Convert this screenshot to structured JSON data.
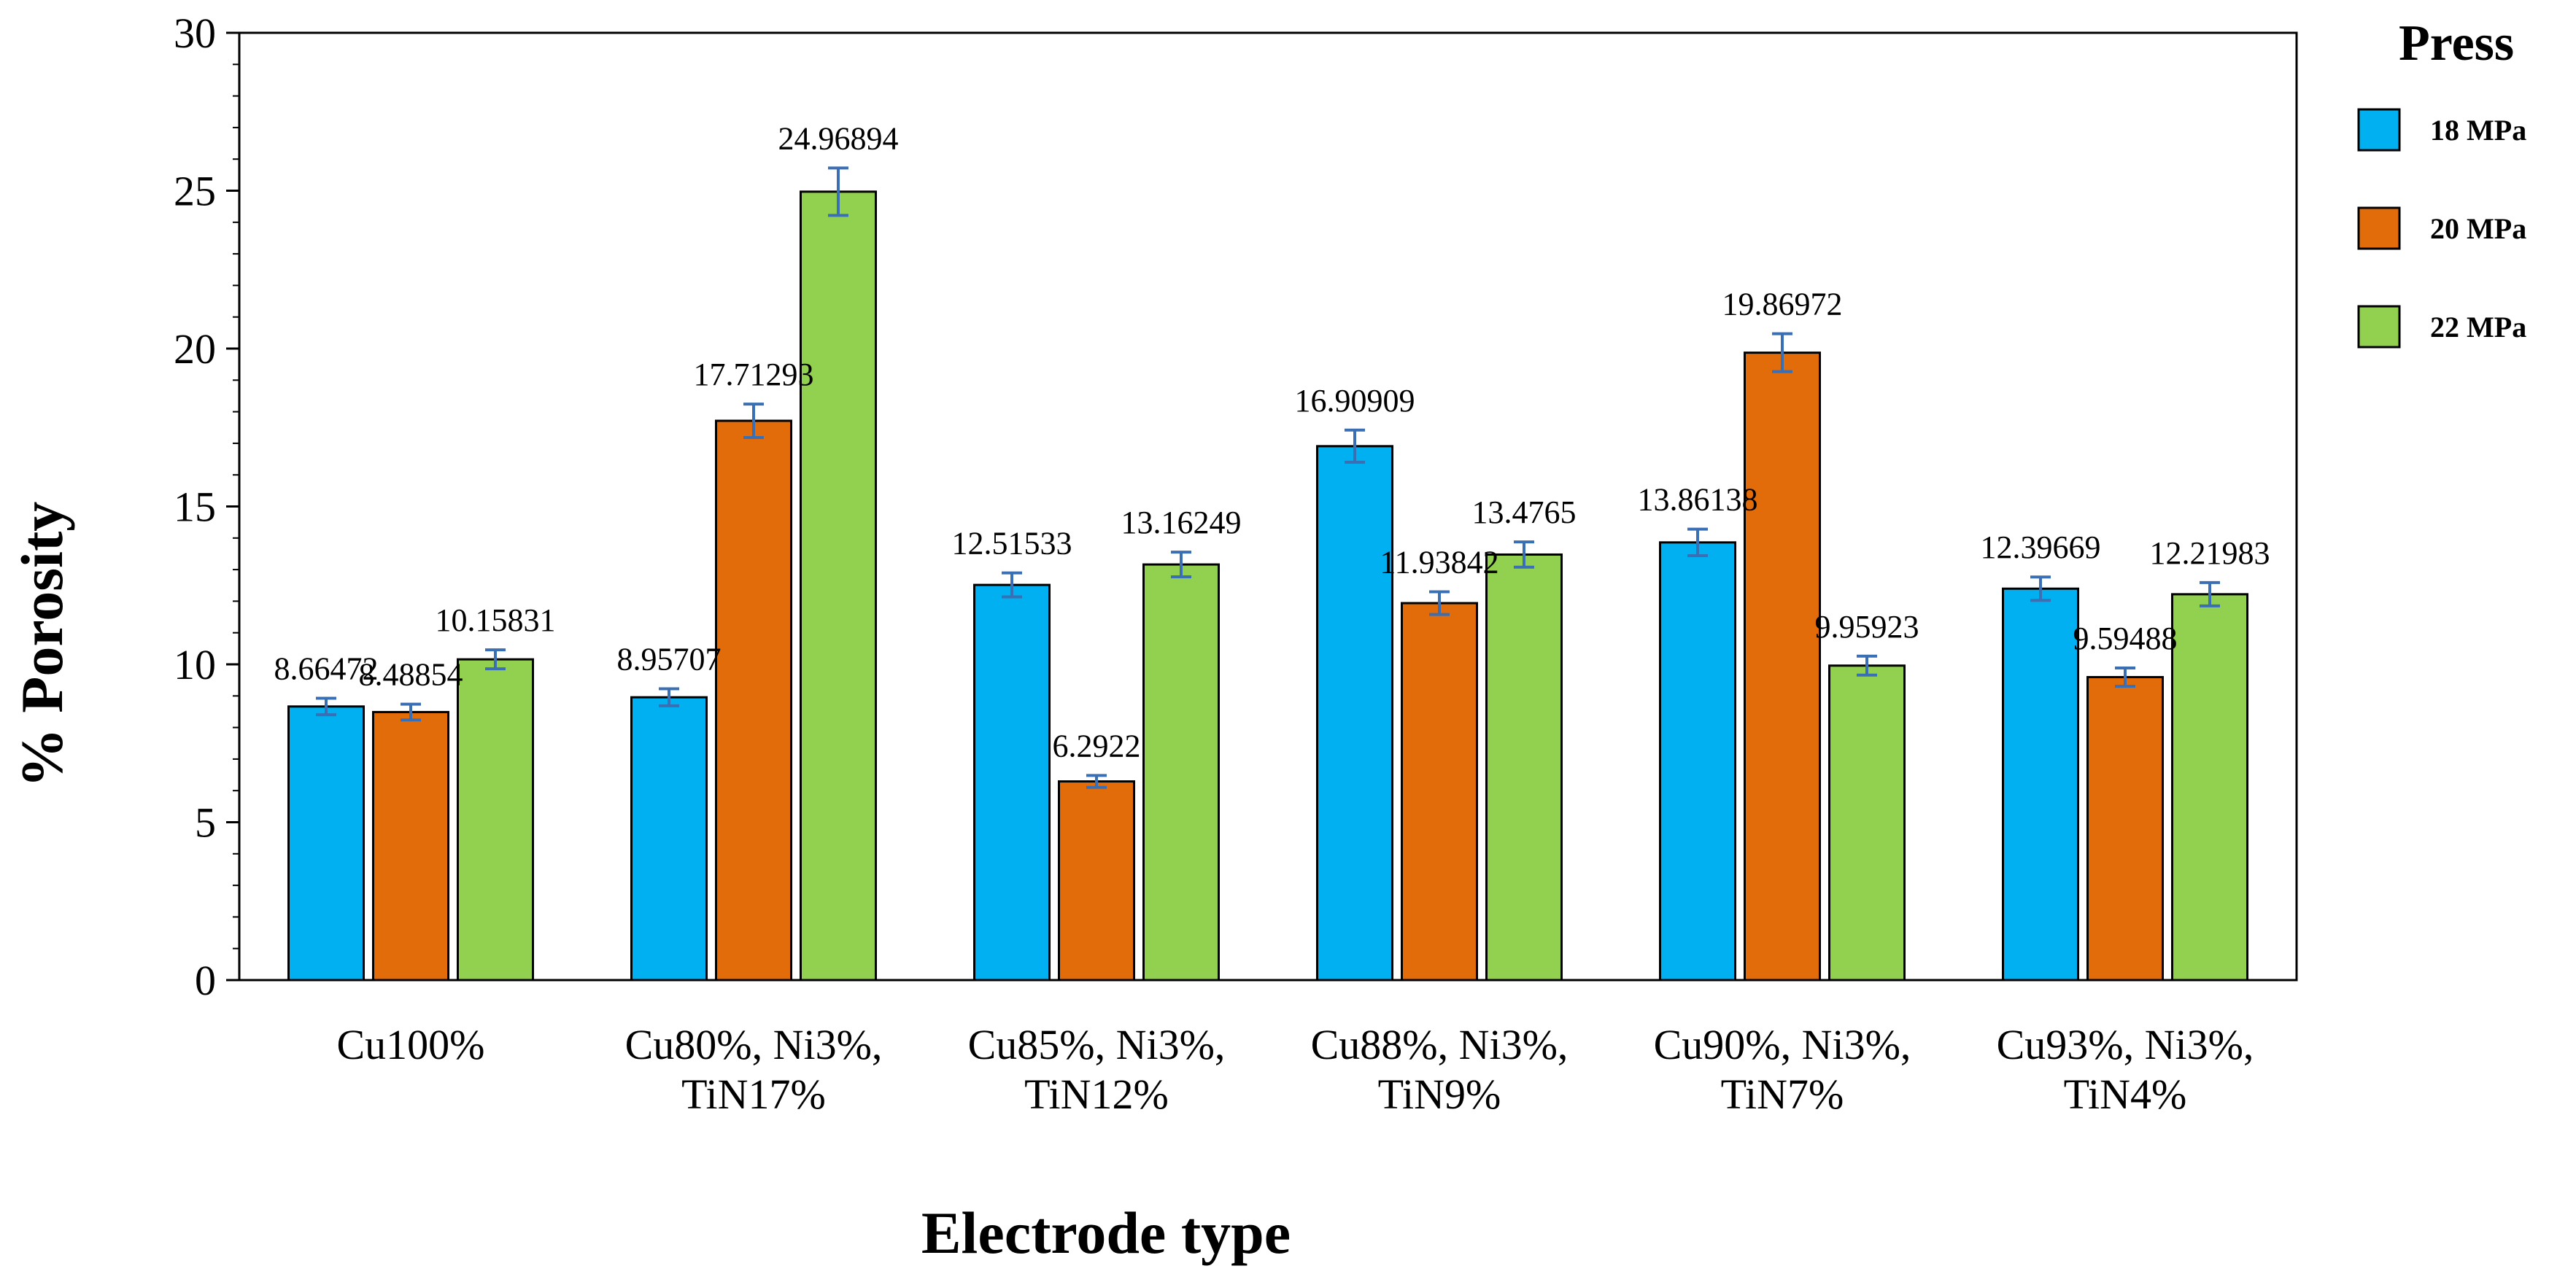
{
  "chart_data": {
    "type": "bar",
    "title": "",
    "xlabel": "Electrode type",
    "ylabel": "% Porosity",
    "ylim": [
      0,
      30
    ],
    "yticks": [
      0,
      5,
      10,
      15,
      20,
      25,
      30
    ],
    "grid": false,
    "legend": {
      "title": "Press",
      "placement": "right"
    },
    "categories": [
      [
        "Cu100%"
      ],
      [
        "Cu80%, Ni3%,",
        "TiN17%"
      ],
      [
        "Cu85%, Ni3%,",
        "TiN12%"
      ],
      [
        "Cu88%, Ni3%,",
        "TiN9%"
      ],
      [
        "Cu90%, Ni3%,",
        "TiN7%"
      ],
      [
        "Cu93%, Ni3%,",
        "TiN4%"
      ]
    ],
    "series": [
      {
        "name": "18 MPa",
        "color": "#00B0F0",
        "values": [
          8.66472,
          8.95707,
          12.51533,
          16.90909,
          13.86138,
          12.39669
        ],
        "labels": [
          "8.66472",
          "8.95707",
          "12.51533",
          "16.90909",
          "13.86138",
          "12.39669"
        ],
        "error": [
          0.26,
          0.27,
          0.38,
          0.51,
          0.42,
          0.37
        ]
      },
      {
        "name": "20 MPa",
        "color": "#E36C0A",
        "values": [
          8.48854,
          17.71293,
          6.2922,
          11.93842,
          19.86972,
          9.59488
        ],
        "labels": [
          "8.48854",
          "17.71293",
          "6.2922",
          "11.93842",
          "19.86972",
          "9.59488"
        ],
        "error": [
          0.25,
          0.53,
          0.19,
          0.36,
          0.6,
          0.29
        ]
      },
      {
        "name": "22 MPa",
        "color": "#92D050",
        "values": [
          10.15831,
          24.96894,
          13.16249,
          13.4765,
          9.95923,
          12.21983
        ],
        "labels": [
          "10.15831",
          "24.96894",
          "13.16249",
          "13.4765",
          "9.95923",
          "12.21983"
        ],
        "error": [
          0.3,
          0.75,
          0.39,
          0.4,
          0.3,
          0.37
        ]
      }
    ]
  }
}
